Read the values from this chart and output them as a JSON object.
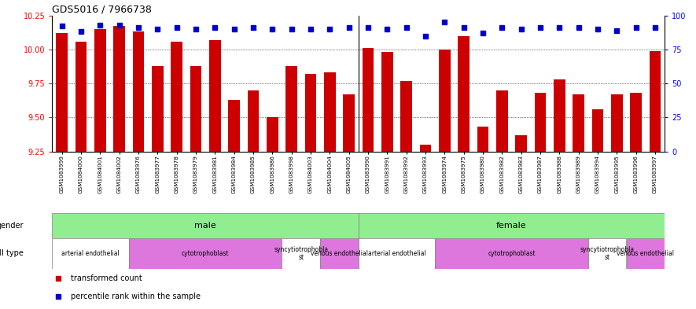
{
  "title": "GDS5016 / 7966738",
  "samples": [
    "GSM1083999",
    "GSM1084000",
    "GSM1084001",
    "GSM1084002",
    "GSM1083976",
    "GSM1083977",
    "GSM1083978",
    "GSM1083979",
    "GSM1083981",
    "GSM1083984",
    "GSM1083985",
    "GSM1083986",
    "GSM1083998",
    "GSM1084003",
    "GSM1084004",
    "GSM1084005",
    "GSM1083990",
    "GSM1083991",
    "GSM1083992",
    "GSM1083993",
    "GSM1083974",
    "GSM1083975",
    "GSM1083980",
    "GSM1083982",
    "GSM1083983",
    "GSM1083987",
    "GSM1083988",
    "GSM1083989",
    "GSM1083994",
    "GSM1083995",
    "GSM1083996",
    "GSM1083997"
  ],
  "bar_values": [
    10.12,
    10.06,
    10.15,
    10.17,
    10.13,
    9.88,
    10.06,
    9.88,
    10.07,
    9.63,
    9.7,
    9.5,
    9.88,
    9.82,
    9.83,
    9.67,
    10.01,
    9.98,
    9.77,
    9.3,
    10.0,
    10.1,
    9.43,
    9.7,
    9.37,
    9.68,
    9.78,
    9.67,
    9.56,
    9.67,
    9.68,
    9.99
  ],
  "percentile_values": [
    92,
    88,
    93,
    93,
    91,
    90,
    91,
    90,
    91,
    90,
    91,
    90,
    90,
    90,
    90,
    91,
    91,
    90,
    91,
    85,
    95,
    91,
    87,
    91,
    90,
    91,
    91,
    91,
    90,
    89,
    91,
    91
  ],
  "ylim_left": [
    9.25,
    10.25
  ],
  "ylim_right": [
    0,
    100
  ],
  "yticks_left": [
    9.25,
    9.5,
    9.75,
    10.0,
    10.25
  ],
  "yticks_right": [
    0,
    25,
    50,
    75,
    100
  ],
  "bar_color": "#cc0000",
  "dot_color": "#0000cc",
  "gender_groups": [
    {
      "label": "male",
      "start": 0,
      "end": 16,
      "color": "#90ee90"
    },
    {
      "label": "female",
      "start": 16,
      "end": 32,
      "color": "#90ee90"
    }
  ],
  "cell_type_groups": [
    {
      "label": "arterial endothelial",
      "start": 0,
      "end": 4,
      "color": "#ffffff"
    },
    {
      "label": "cytotrophoblast",
      "start": 4,
      "end": 12,
      "color": "#dd77dd"
    },
    {
      "label": "syncytiotrophoblast",
      "start": 12,
      "end": 14,
      "color": "#ffffff"
    },
    {
      "label": "venous endothelial",
      "start": 14,
      "end": 16,
      "color": "#dd77dd"
    },
    {
      "label": "arterial endothelial",
      "start": 16,
      "end": 20,
      "color": "#ffffff"
    },
    {
      "label": "cytotrophoblast",
      "start": 20,
      "end": 28,
      "color": "#dd77dd"
    },
    {
      "label": "syncytiotrophoblast",
      "start": 28,
      "end": 30,
      "color": "#ffffff"
    },
    {
      "label": "venous endothelial",
      "start": 30,
      "end": 32,
      "color": "#dd77dd"
    }
  ],
  "legend_items": [
    {
      "label": "transformed count",
      "color": "#cc0000"
    },
    {
      "label": "percentile rank within the sample",
      "color": "#0000cc"
    }
  ],
  "bg_color": "#f0f0f0",
  "chart_bg": "#ffffff"
}
